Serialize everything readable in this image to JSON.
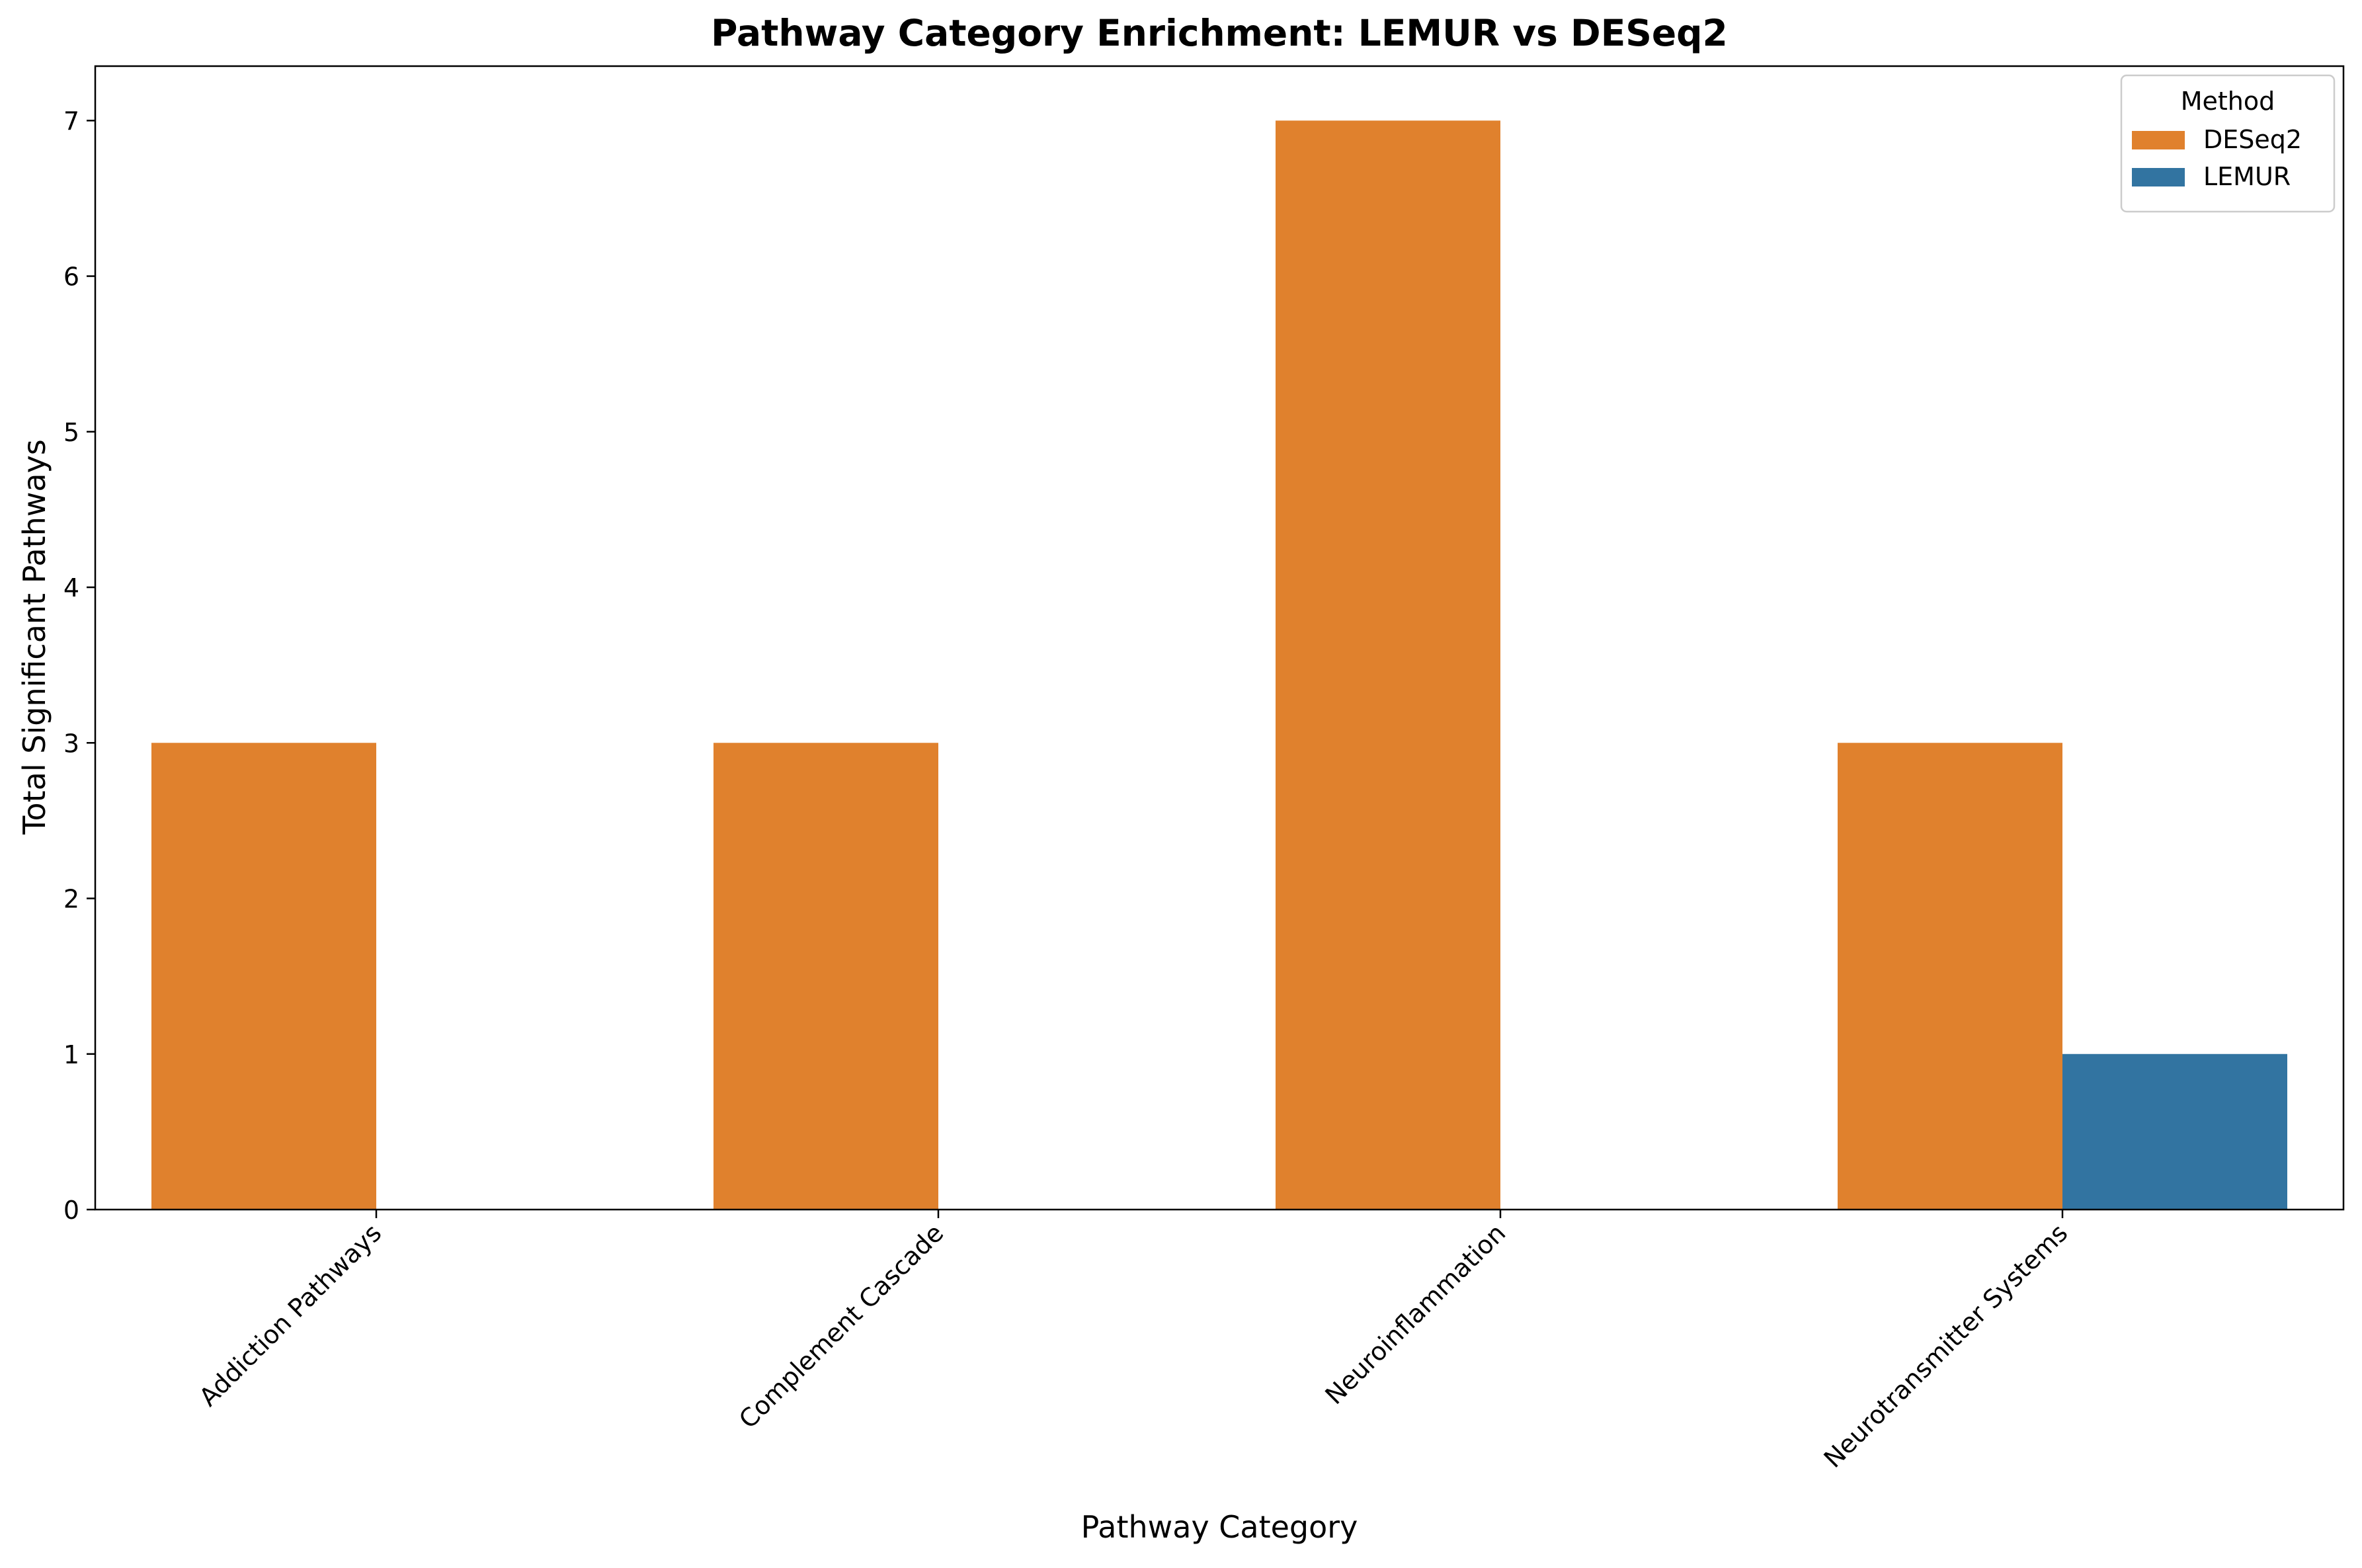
{
  "chart_data": {
    "type": "bar",
    "title": "Pathway Category Enrichment: LEMUR vs DESeq2",
    "xlabel": "Pathway Category",
    "ylabel": "Total Significant Pathways",
    "categories": [
      "Addiction Pathways",
      "Complement Cascade",
      "Neuroinflammation",
      "Neurotransmitter Systems"
    ],
    "series": [
      {
        "name": "DESeq2",
        "values": [
          3,
          3,
          7,
          3
        ],
        "color": "#e0812d"
      },
      {
        "name": "LEMUR",
        "values": [
          0,
          0,
          0,
          1
        ],
        "color": "#3274a1"
      }
    ],
    "ylim": [
      0,
      7.35
    ],
    "yticks": [
      0,
      1,
      2,
      3,
      4,
      5,
      6,
      7
    ],
    "grid": false,
    "legend": {
      "title": "Method",
      "placement": "top-right"
    }
  }
}
